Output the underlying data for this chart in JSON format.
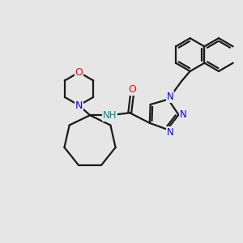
{
  "background_color": "#e6e6e6",
  "bond_color": "#1a1a1a",
  "nitrogen_color": "#0000ff",
  "oxygen_color": "#ff0000",
  "amide_n_color": "#008b8b",
  "line_width": 1.6,
  "figsize": [
    3.0,
    3.0
  ],
  "dpi": 100,
  "xlim": [
    -1.5,
    8.5
  ],
  "ylim": [
    -3.5,
    5.5
  ]
}
